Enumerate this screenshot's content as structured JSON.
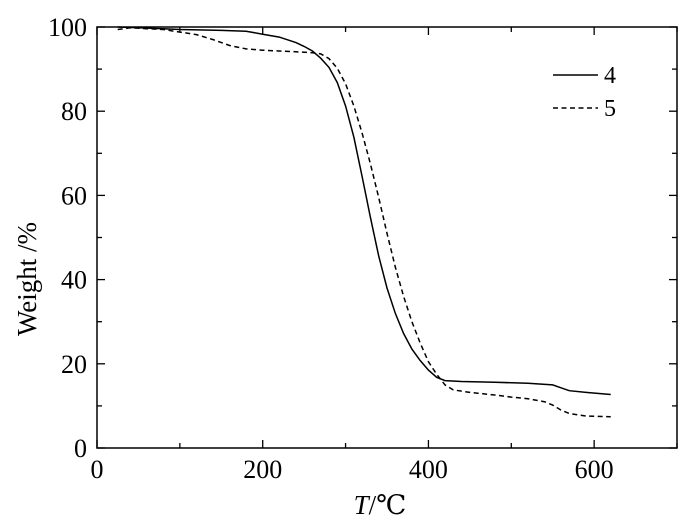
{
  "chart_data": {
    "type": "line",
    "title": "",
    "xlabel_italic": "T",
    "xlabel_unit": "/℃",
    "ylabel": "Weight /%",
    "xlim": [
      0,
      700
    ],
    "ylim": [
      0,
      100
    ],
    "x_ticks": [
      0,
      200,
      400,
      600
    ],
    "y_ticks": [
      0,
      20,
      40,
      60,
      80,
      100
    ],
    "grid": false,
    "legend_position": "top-right",
    "series": [
      {
        "name": "4",
        "line_style": "solid",
        "color": "#000000",
        "points": [
          [
            25,
            100
          ],
          [
            50,
            99.8
          ],
          [
            80,
            99.6
          ],
          [
            100,
            99.4
          ],
          [
            150,
            99.2
          ],
          [
            180,
            99.0
          ],
          [
            200,
            98.3
          ],
          [
            220,
            97.6
          ],
          [
            240,
            96.3
          ],
          [
            250,
            95.4
          ],
          [
            260,
            94.3
          ],
          [
            270,
            92.6
          ],
          [
            280,
            90.4
          ],
          [
            290,
            86.8
          ],
          [
            300,
            81.2
          ],
          [
            310,
            73.8
          ],
          [
            320,
            64.5
          ],
          [
            330,
            54.8
          ],
          [
            340,
            45.6
          ],
          [
            350,
            38.0
          ],
          [
            360,
            32.0
          ],
          [
            370,
            27.2
          ],
          [
            380,
            23.5
          ],
          [
            390,
            20.8
          ],
          [
            400,
            18.5
          ],
          [
            410,
            16.8
          ],
          [
            420,
            16.0
          ],
          [
            440,
            15.8
          ],
          [
            480,
            15.6
          ],
          [
            520,
            15.4
          ],
          [
            550,
            15.0
          ],
          [
            560,
            14.3
          ],
          [
            570,
            13.6
          ],
          [
            590,
            13.2
          ],
          [
            620,
            12.7
          ]
        ]
      },
      {
        "name": "5",
        "line_style": "dashed",
        "color": "#000000",
        "points": [
          [
            25,
            99.4
          ],
          [
            40,
            99.8
          ],
          [
            60,
            99.6
          ],
          [
            80,
            99.4
          ],
          [
            100,
            98.8
          ],
          [
            120,
            98.2
          ],
          [
            140,
            97.0
          ],
          [
            160,
            95.6
          ],
          [
            180,
            94.8
          ],
          [
            200,
            94.5
          ],
          [
            220,
            94.3
          ],
          [
            240,
            94.1
          ],
          [
            260,
            93.9
          ],
          [
            270,
            93.6
          ],
          [
            280,
            92.5
          ],
          [
            290,
            90.2
          ],
          [
            300,
            86.5
          ],
          [
            310,
            81.2
          ],
          [
            320,
            74.8
          ],
          [
            330,
            67.5
          ],
          [
            340,
            59.5
          ],
          [
            350,
            51.0
          ],
          [
            360,
            43.0
          ],
          [
            370,
            36.0
          ],
          [
            380,
            30.0
          ],
          [
            390,
            25.0
          ],
          [
            400,
            20.5
          ],
          [
            410,
            17.5
          ],
          [
            420,
            15.0
          ],
          [
            430,
            13.8
          ],
          [
            450,
            13.2
          ],
          [
            480,
            12.6
          ],
          [
            500,
            12.1
          ],
          [
            520,
            11.7
          ],
          [
            540,
            11.0
          ],
          [
            550,
            10.2
          ],
          [
            560,
            9.0
          ],
          [
            570,
            8.2
          ],
          [
            590,
            7.6
          ],
          [
            620,
            7.4
          ]
        ]
      }
    ]
  }
}
